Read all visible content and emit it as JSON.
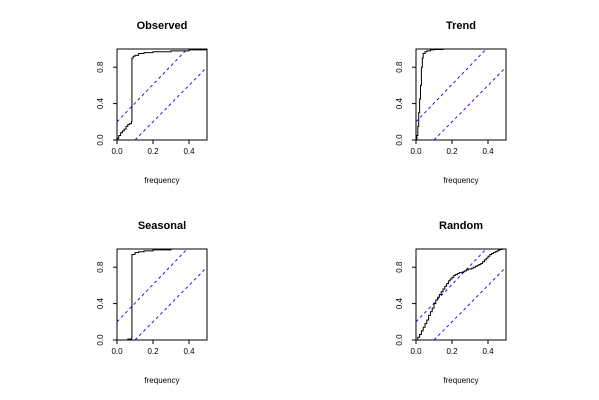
{
  "chart_data": [
    {
      "type": "line",
      "title": "Observed",
      "xlabel": "frequency",
      "ylabel": "",
      "xlim": [
        0,
        0.5
      ],
      "ylim": [
        0,
        1
      ],
      "x_ticks": [
        "0.0",
        "0.2",
        "0.4"
      ],
      "y_ticks": [
        "0.0",
        "0.4",
        "0.8"
      ],
      "series": [
        {
          "style": "step",
          "color": "#000000",
          "x": [
            0,
            0.005,
            0.01,
            0.02,
            0.03,
            0.04,
            0.05,
            0.06,
            0.07,
            0.08,
            0.083,
            0.09,
            0.1,
            0.12,
            0.15,
            0.2,
            0.3,
            0.4,
            0.5
          ],
          "y": [
            0,
            0.02,
            0.05,
            0.08,
            0.1,
            0.12,
            0.15,
            0.17,
            0.18,
            0.2,
            0.9,
            0.92,
            0.93,
            0.95,
            0.96,
            0.97,
            0.98,
            0.99,
            1.0
          ]
        }
      ],
      "confidence_bands": {
        "color": "#0000ff",
        "dash": "dashed",
        "lines": [
          {
            "x": [
              0,
              0.39
            ],
            "y": [
              0.2,
              1.0
            ]
          },
          {
            "x": [
              0.1,
              0.5
            ],
            "y": [
              0,
              0.8
            ]
          }
        ]
      }
    },
    {
      "type": "line",
      "title": "Trend",
      "xlabel": "frequency",
      "ylabel": "",
      "xlim": [
        0,
        0.5
      ],
      "ylim": [
        0,
        1
      ],
      "x_ticks": [
        "0.0",
        "0.2",
        "0.4"
      ],
      "y_ticks": [
        "0.0",
        "0.4",
        "0.8"
      ],
      "series": [
        {
          "style": "step",
          "color": "#000000",
          "x": [
            0,
            0.005,
            0.01,
            0.015,
            0.02,
            0.025,
            0.03,
            0.035,
            0.04,
            0.05,
            0.06,
            0.08,
            0.1,
            0.15,
            0.5
          ],
          "y": [
            0,
            0.05,
            0.15,
            0.3,
            0.45,
            0.6,
            0.8,
            0.9,
            0.95,
            0.97,
            0.98,
            0.99,
            0.995,
            1.0,
            1.0
          ]
        }
      ],
      "confidence_bands": {
        "color": "#0000ff",
        "dash": "dashed",
        "lines": [
          {
            "x": [
              0,
              0.39
            ],
            "y": [
              0.2,
              1.0
            ]
          },
          {
            "x": [
              0.1,
              0.5
            ],
            "y": [
              0,
              0.8
            ]
          }
        ]
      }
    },
    {
      "type": "line",
      "title": "Seasonal",
      "xlabel": "frequency",
      "ylabel": "",
      "xlim": [
        0,
        0.5
      ],
      "ylim": [
        0,
        1
      ],
      "x_ticks": [
        "0.0",
        "0.2",
        "0.4"
      ],
      "y_ticks": [
        "0.0",
        "0.4",
        "0.8"
      ],
      "series": [
        {
          "style": "step",
          "color": "#000000",
          "x": [
            0,
            0.03,
            0.06,
            0.08,
            0.083,
            0.1,
            0.12,
            0.15,
            0.2,
            0.3,
            0.5
          ],
          "y": [
            0,
            0,
            0.01,
            0.02,
            0.94,
            0.96,
            0.97,
            0.98,
            0.99,
            1.0,
            1.0
          ]
        }
      ],
      "confidence_bands": {
        "color": "#0000ff",
        "dash": "dashed",
        "lines": [
          {
            "x": [
              0,
              0.39
            ],
            "y": [
              0.2,
              1.0
            ]
          },
          {
            "x": [
              0.1,
              0.5
            ],
            "y": [
              0,
              0.8
            ]
          }
        ]
      }
    },
    {
      "type": "line",
      "title": "Random",
      "xlabel": "frequency",
      "ylabel": "",
      "xlim": [
        0,
        0.5
      ],
      "ylim": [
        0,
        1
      ],
      "x_ticks": [
        "0.0",
        "0.2",
        "0.4"
      ],
      "y_ticks": [
        "0.0",
        "0.4",
        "0.8"
      ],
      "series": [
        {
          "style": "step",
          "color": "#000000",
          "x": [
            0,
            0.01,
            0.02,
            0.03,
            0.04,
            0.05,
            0.06,
            0.07,
            0.08,
            0.09,
            0.1,
            0.11,
            0.12,
            0.13,
            0.14,
            0.15,
            0.16,
            0.17,
            0.18,
            0.19,
            0.2,
            0.21,
            0.22,
            0.23,
            0.24,
            0.25,
            0.26,
            0.27,
            0.28,
            0.29,
            0.3,
            0.31,
            0.32,
            0.33,
            0.34,
            0.35,
            0.36,
            0.37,
            0.38,
            0.39,
            0.4,
            0.41,
            0.42,
            0.43,
            0.44,
            0.45,
            0.46,
            0.47,
            0.48,
            0.5
          ],
          "y": [
            0,
            0.03,
            0.06,
            0.1,
            0.14,
            0.18,
            0.22,
            0.27,
            0.31,
            0.35,
            0.4,
            0.44,
            0.47,
            0.5,
            0.53,
            0.56,
            0.59,
            0.62,
            0.65,
            0.67,
            0.69,
            0.71,
            0.72,
            0.73,
            0.74,
            0.74,
            0.75,
            0.76,
            0.77,
            0.78,
            0.78,
            0.79,
            0.8,
            0.81,
            0.82,
            0.83,
            0.84,
            0.86,
            0.88,
            0.9,
            0.92,
            0.94,
            0.95,
            0.96,
            0.97,
            0.98,
            0.99,
            0.995,
            1.0,
            1.0
          ]
        }
      ],
      "confidence_bands": {
        "color": "#0000ff",
        "dash": "dashed",
        "lines": [
          {
            "x": [
              0,
              0.39
            ],
            "y": [
              0.2,
              1.0
            ]
          },
          {
            "x": [
              0.1,
              0.5
            ],
            "y": [
              0,
              0.8
            ]
          }
        ]
      }
    }
  ]
}
